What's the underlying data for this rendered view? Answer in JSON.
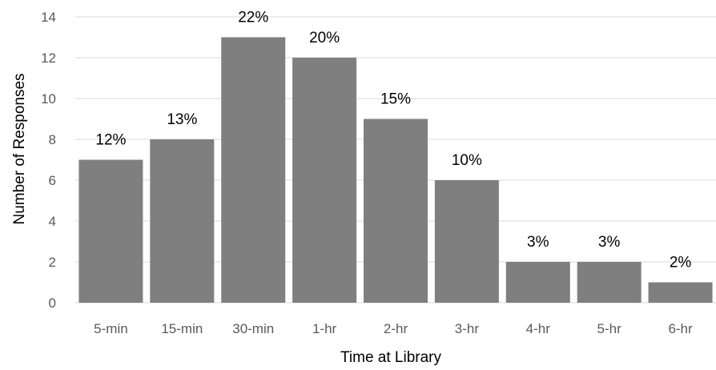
{
  "chart_data": {
    "type": "bar",
    "title": "",
    "xlabel": "Time at Library",
    "ylabel": "Number of Responses",
    "categories": [
      "5-min",
      "15-min",
      "30-min",
      "1-hr",
      "2-hr",
      "3-hr",
      "4-hr",
      "5-hr",
      "6-hr"
    ],
    "values": [
      7,
      8,
      13,
      12,
      9,
      6,
      2,
      2,
      1
    ],
    "data_labels": [
      "12%",
      "13%",
      "22%",
      "20%",
      "15%",
      "10%",
      "3%",
      "3%",
      "2%"
    ],
    "ylim": [
      0,
      14
    ],
    "yticks": [
      0,
      2,
      4,
      6,
      8,
      10,
      12,
      14
    ],
    "grid": true,
    "legend": "none",
    "colors": {
      "bar": "#7f7f7f",
      "grid": "#d9d9d9",
      "tick_text": "#595959",
      "label_text": "#000000"
    }
  }
}
